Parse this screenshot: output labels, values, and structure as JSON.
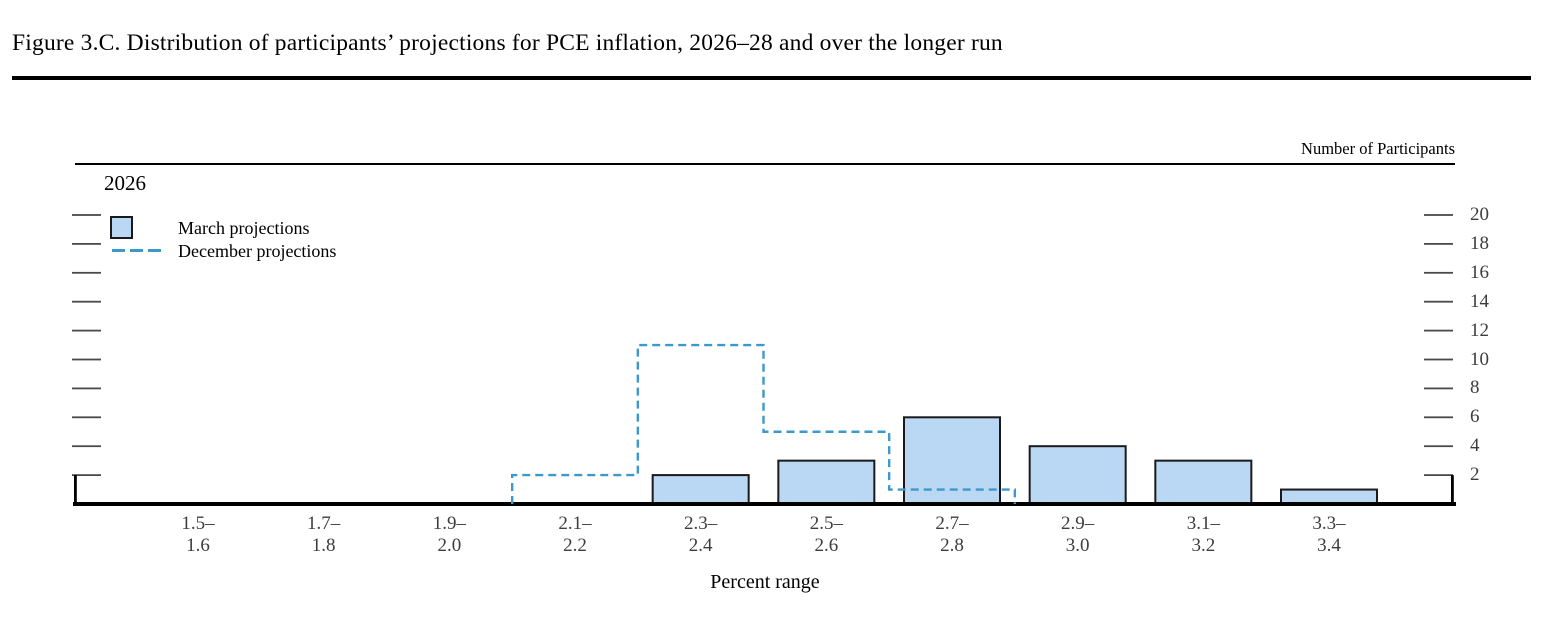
{
  "figure": {
    "title": "Figure 3.C. Distribution of participants’ projections for PCE inflation, 2026–28 and over the longer run"
  },
  "panel": {
    "year_label": "2026",
    "y_axis_label": "Number of Participants",
    "x_axis_label": "Percent range"
  },
  "legend": {
    "march_label": "March projections",
    "december_label": "December projections"
  },
  "colors": {
    "bar_fill": "#BAD8F3",
    "bar_border": "#1a1a1a",
    "december_line": "#3D98CC",
    "axis_black": "#000000",
    "tick_color": "#4a4a4a",
    "tick_label_color": "#3d3d3d"
  },
  "chart_data": {
    "type": "bar",
    "title": "2026",
    "xlabel": "Percent range",
    "ylabel": "Number of Participants",
    "categories": [
      "1.5–1.6",
      "1.7–1.8",
      "1.9–2.0",
      "2.1–2.2",
      "2.3–2.4",
      "2.5–2.6",
      "2.7–2.8",
      "2.9–3.0",
      "3.1–3.2",
      "3.3–3.4"
    ],
    "series": [
      {
        "name": "March projections",
        "style": "filled-bars",
        "values": [
          0,
          0,
          0,
          0,
          2,
          3,
          6,
          4,
          3,
          1
        ]
      },
      {
        "name": "December projections",
        "style": "dashed-step-outline",
        "values": [
          0,
          0,
          0,
          2,
          11,
          5,
          1,
          0,
          0,
          0
        ]
      }
    ],
    "y_ticks": [
      2,
      4,
      6,
      8,
      10,
      12,
      14,
      16,
      18,
      20
    ],
    "ylim": [
      0,
      22
    ],
    "grid": false,
    "legend_position": "top-left"
  }
}
